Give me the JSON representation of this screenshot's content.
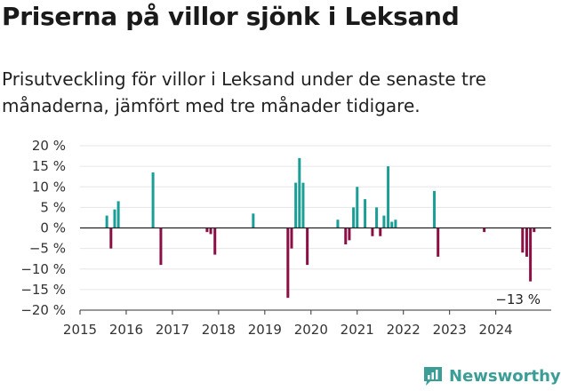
{
  "header": {
    "title": "Priserna på villor sjönk i Leksand",
    "subtitle": "Prisutveckling för villor i Leksand under de senaste tre månaderna, jämfört med tre månader tidigare."
  },
  "brand": {
    "name": "Newsworthy",
    "color": "#3a9e96"
  },
  "colors": {
    "positive": "#1a9e96",
    "negative": "#8b0f45",
    "zero_line": "#222222",
    "grid": "#e6e6e6"
  },
  "chart_data": {
    "type": "bar",
    "ylim": [
      -20,
      20
    ],
    "yticks": [
      -20,
      -15,
      -10,
      -5,
      0,
      5,
      10,
      15,
      20
    ],
    "ytick_labels": [
      "−20 %",
      "−15 %",
      "−10 %",
      "−5 %",
      "0 %",
      "5 %",
      "10 %",
      "15 %",
      "20 %"
    ],
    "xlim": [
      2015,
      2025.2
    ],
    "xticks": [
      2015,
      2016,
      2017,
      2018,
      2019,
      2020,
      2021,
      2022,
      2023,
      2024
    ],
    "xtick_labels": [
      "2015",
      "2016",
      "2017",
      "2018",
      "2019",
      "2020",
      "2021",
      "2022",
      "2023",
      "2024"
    ],
    "annotation": "−13 %",
    "x": [
      2015.58,
      2015.67,
      2015.75,
      2015.83,
      2016.58,
      2016.75,
      2017.75,
      2017.83,
      2017.92,
      2018.75,
      2019.5,
      2019.58,
      2019.67,
      2019.75,
      2019.83,
      2019.92,
      2020.58,
      2020.75,
      2020.83,
      2020.92,
      2021.0,
      2021.17,
      2021.33,
      2021.42,
      2021.5,
      2021.58,
      2021.67,
      2021.75,
      2021.83,
      2022.67,
      2022.75,
      2023.75,
      2024.58,
      2024.67,
      2024.75,
      2024.83
    ],
    "values": [
      3,
      -5,
      4.5,
      6.5,
      13.5,
      -9,
      -1,
      -1.5,
      -6.5,
      3.5,
      -17,
      -5,
      11,
      17,
      11,
      -9,
      2,
      -4,
      -3,
      5,
      10,
      7,
      -2,
      5,
      -2,
      3,
      15,
      1.5,
      2,
      9,
      -7,
      -1,
      -6,
      -7,
      -13,
      -1
    ]
  }
}
